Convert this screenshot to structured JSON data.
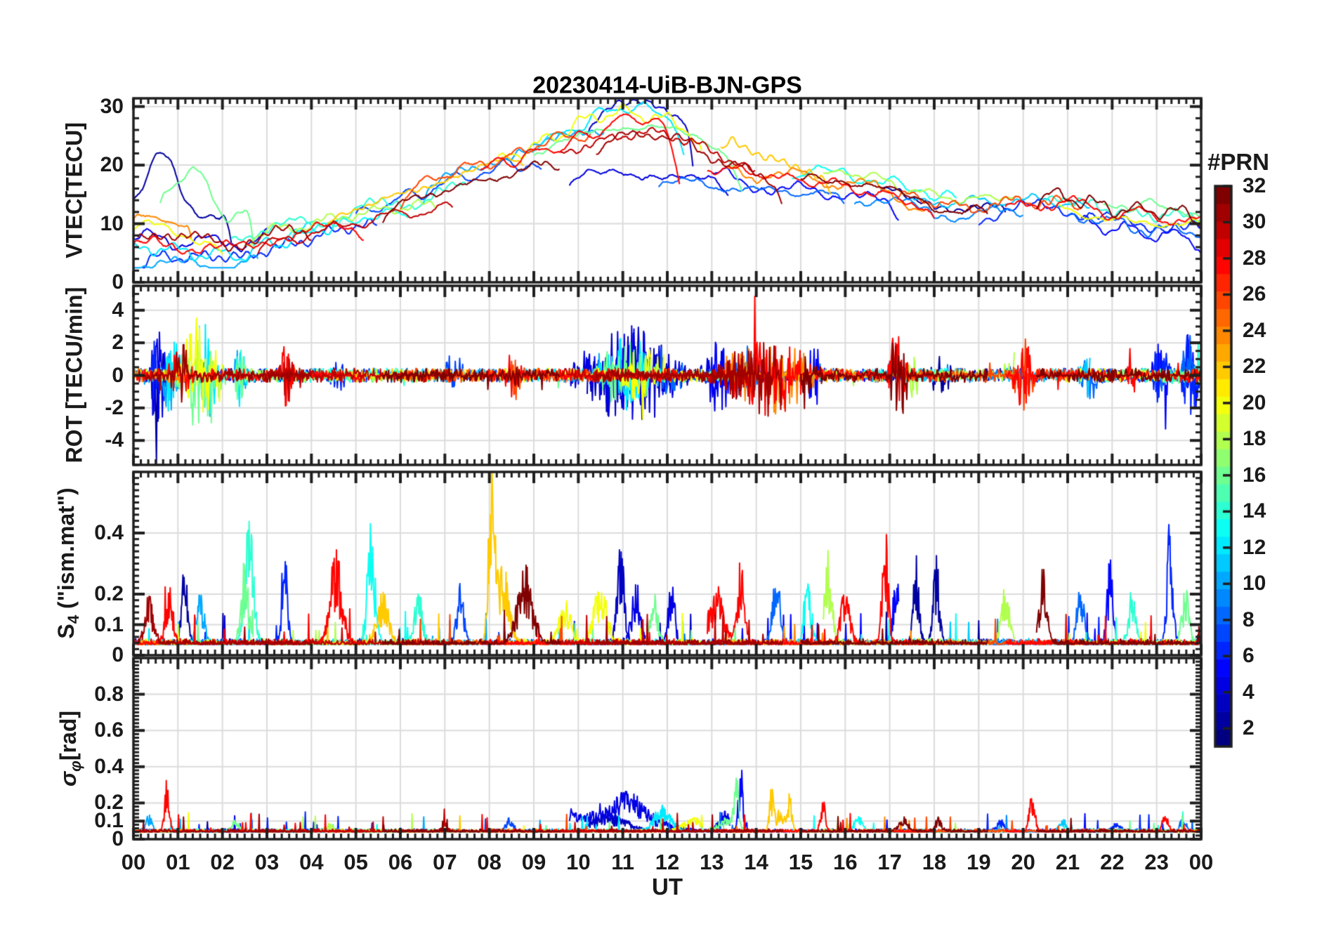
{
  "title": "20230414-UiB-BJN-GPS",
  "x_axis": {
    "label": "UT",
    "tick_labels": [
      "00",
      "01",
      "02",
      "03",
      "04",
      "05",
      "06",
      "07",
      "08",
      "09",
      "10",
      "11",
      "12",
      "13",
      "14",
      "15",
      "16",
      "17",
      "18",
      "19",
      "20",
      "21",
      "22",
      "23",
      "00"
    ],
    "hours_span": 24,
    "minor_tick_minutes": 10
  },
  "colorbar": {
    "label": "#PRN",
    "min": 1,
    "max": 32,
    "levels": 32,
    "tick_values": [
      32,
      30,
      28,
      26,
      24,
      22,
      20,
      18,
      16,
      14,
      12,
      10,
      8,
      6,
      4,
      2
    ],
    "colormap": "jet"
  },
  "figure": {
    "bg": "#ffffff",
    "axis_color": "#1f1f1f",
    "grid_color": "#dcdcdc",
    "text_color": "#1a1a1a"
  },
  "panels": [
    {
      "id": "vtec",
      "ylabel": {
        "pre": "VTEC[TECU]",
        "sub": "",
        "post": ""
      },
      "ylim": [
        0,
        31.4
      ],
      "yticks": [
        30,
        20,
        10,
        0
      ],
      "ytick_labels": [
        "30",
        "20",
        "10",
        "0"
      ],
      "minor_step": 2,
      "grid": true
    },
    {
      "id": "rot",
      "ylabel": {
        "pre": "ROT [TECU/min]",
        "sub": "",
        "post": ""
      },
      "ylim": [
        -5.5,
        5.5
      ],
      "yticks": [
        4,
        2,
        0,
        -2,
        -4
      ],
      "ytick_labels": [
        "4",
        "2",
        "0",
        "-2",
        "-4"
      ],
      "minor_step": 0.5,
      "grid": true
    },
    {
      "id": "s4",
      "ylabel": {
        "pre": "S",
        "sub": "4",
        "post": " (\"ism.mat\")"
      },
      "ylim": [
        0,
        0.6
      ],
      "yticks": [
        0.4,
        0.2,
        0.1,
        0
      ],
      "ytick_labels": [
        "0.4",
        "0.2",
        "0.1",
        "0"
      ],
      "minor_step": 0.02,
      "grid": true
    },
    {
      "id": "sigma_phi",
      "ylabel": {
        "pre": "σ",
        "sub": "φ",
        "post": "[rad]"
      },
      "ylim": [
        0,
        1.0
      ],
      "yticks": [
        0.8,
        0.6,
        0.4,
        0.2,
        0.1,
        0
      ],
      "ytick_labels": [
        "0.8",
        "0.6",
        "0.4",
        "0.2",
        "0.1",
        "0"
      ],
      "minor_step": 0.02,
      "grid": true
    }
  ],
  "chart_data": {
    "type": "line",
    "title": "20230414-UiB-BJN-GPS",
    "x_unit": "UT hours",
    "x_range": [
      0,
      24
    ],
    "color_coding": "line color = GPS PRN number 1-32 mapped through jet colormap",
    "panel_summaries": [
      {
        "panel": "VTEC[TECU]",
        "ylim": [
          0,
          31.4
        ],
        "behavior": "per-satellite arcs; band 5-15 TECU at 00-03 UT, minimum ~6 near 02 UT, rising to peak 23-30 TECU at 10-12.5 UT, decaying to 10-15 TECU after 17 UT"
      },
      {
        "panel": "ROT [TECU/min]",
        "ylim": [
          -5.5,
          5.5
        ],
        "behavior": "noise around 0 with bursts to ±4.5 near 00.5-02, 09.5-12.5, 13-15.5, 17.3, 19.5-20.3, 23.5-24 UT"
      },
      {
        "panel": "S4 (ism.mat)",
        "ylim": [
          0,
          0.6
        ],
        "behavior": "baseline 0.03-0.08 with scintillation spikes 0.2-0.62 throughout the day"
      },
      {
        "panel": "sigma_phi [rad]",
        "ylim": [
          0,
          1.0
        ],
        "behavior": "baseline ~0.05 rad, red spike 0.4 at 00.8 UT, elevated blue activity 0.1-0.22 at 10-12.5 UT, spikes 0.3-0.4 near 13.6 UT, orange spikes ~0.28 near 14.3-14.8 UT"
      }
    ],
    "vtec_center": [
      [
        0,
        10
      ],
      [
        0.5,
        10
      ],
      [
        1,
        9.5
      ],
      [
        1.5,
        9
      ],
      [
        2,
        8
      ],
      [
        2.5,
        8
      ],
      [
        3,
        9
      ],
      [
        3.5,
        9.8
      ],
      [
        4,
        10.5
      ],
      [
        5,
        12
      ],
      [
        6,
        13.5
      ],
      [
        7,
        15.5
      ],
      [
        8,
        17.5
      ],
      [
        9,
        19.5
      ],
      [
        10,
        21.5
      ],
      [
        10.8,
        23
      ],
      [
        11.5,
        23.5
      ],
      [
        12,
        23
      ],
      [
        12.5,
        22
      ],
      [
        13,
        20.5
      ],
      [
        13.5,
        19.5
      ],
      [
        14,
        18.5
      ],
      [
        14.5,
        18
      ],
      [
        15,
        17.8
      ],
      [
        15.5,
        17.5
      ],
      [
        16,
        17.3
      ],
      [
        16.5,
        16.5
      ],
      [
        17,
        15.8
      ],
      [
        17.5,
        14.5
      ],
      [
        18,
        13.2
      ],
      [
        18.5,
        12.8
      ],
      [
        19,
        13
      ],
      [
        19.5,
        13.5
      ],
      [
        20,
        14
      ],
      [
        20.5,
        14
      ],
      [
        21,
        13.5
      ],
      [
        21.5,
        12.8
      ],
      [
        22,
        12
      ],
      [
        22.5,
        11.5
      ],
      [
        23,
        11.2
      ],
      [
        23.5,
        11
      ],
      [
        24,
        10.8
      ]
    ],
    "vtec_spread": [
      [
        0,
        4
      ],
      [
        1,
        4.5
      ],
      [
        2,
        3.5
      ],
      [
        3,
        2.5
      ],
      [
        4,
        2
      ],
      [
        5,
        2
      ],
      [
        6,
        2.5
      ],
      [
        7,
        3
      ],
      [
        8,
        3.5
      ],
      [
        9,
        4
      ],
      [
        10,
        4.5
      ],
      [
        11,
        5
      ],
      [
        12,
        5
      ],
      [
        13,
        4
      ],
      [
        14,
        3
      ],
      [
        15,
        2.5
      ],
      [
        16,
        2.5
      ],
      [
        17,
        2.5
      ],
      [
        18,
        2.2
      ],
      [
        19,
        2.2
      ],
      [
        20,
        2.2
      ],
      [
        21,
        2
      ],
      [
        22,
        2
      ],
      [
        23,
        2
      ],
      [
        24,
        2
      ]
    ],
    "passes": [
      {
        "p": 2,
        "s": 0,
        "e": 2.2,
        "o": 0.9,
        "b": [
          0.62,
          8.5,
          0.28
        ],
        "ed": 5,
        "sd": 0
      },
      {
        "p": 3,
        "s": 10.2,
        "e": 12.6,
        "o": 1.1,
        "b": [
          11.5,
          2.5,
          0.55
        ],
        "ed": 9
      },
      {
        "p": 2,
        "s": 16.8,
        "e": 19.6,
        "o": -0.2
      },
      {
        "p": 4,
        "s": 0,
        "e": 3.0,
        "o": -0.5,
        "ed": 0
      },
      {
        "p": 4,
        "s": 9.8,
        "e": 13.4,
        "o": -0.9,
        "ed": 2
      },
      {
        "p": 5,
        "s": 13.0,
        "e": 17.2,
        "o": -0.5
      },
      {
        "p": 6,
        "s": 0.2,
        "e": 5.5,
        "o": -1.3,
        "sd": 2
      },
      {
        "p": 6,
        "s": 19.0,
        "e": 24,
        "o": -0.6
      },
      {
        "p": 7,
        "s": 5.0,
        "e": 9.2,
        "o": 0.3,
        "sd": 2
      },
      {
        "p": 8,
        "s": 11.8,
        "e": 16.0,
        "o": -1.1
      },
      {
        "p": 8,
        "s": 21.0,
        "e": 24,
        "o": -0.9
      },
      {
        "p": 10,
        "s": 0,
        "e": 2.8,
        "o": -1.5
      },
      {
        "p": 10,
        "s": 6.5,
        "e": 10.6,
        "o": 0.8,
        "sd": 3
      },
      {
        "p": 11,
        "s": 17.5,
        "e": 21.5,
        "o": 0.2
      },
      {
        "p": 12,
        "s": 0,
        "e": 4.6,
        "o": -1.0
      },
      {
        "p": 12,
        "s": 8.8,
        "e": 12.4,
        "o": 1.0,
        "b": [
          11.0,
          1.5,
          0.6
        ],
        "ed": 7
      },
      {
        "p": 13,
        "s": 14.8,
        "e": 18.5,
        "o": 0.5
      },
      {
        "p": 13,
        "s": 3.4,
        "e": 6.2,
        "o": -0.6
      },
      {
        "p": 14,
        "s": 2.2,
        "e": 7.5,
        "o": 0.1,
        "sd": 1.5
      },
      {
        "p": 14,
        "s": 20.5,
        "e": 24,
        "o": 0.4
      },
      {
        "p": 16,
        "s": 9.0,
        "e": 13.7,
        "o": 0.7,
        "ed": 6
      },
      {
        "p": 16,
        "s": 0.6,
        "e": 2.7,
        "o": 1.2,
        "b": [
          1.32,
          5,
          0.3
        ],
        "ed": 7,
        "sd": 3
      },
      {
        "p": 16,
        "s": 21.8,
        "e": 24,
        "o": 0.7
      },
      {
        "p": 18,
        "s": 2.5,
        "e": 6.8,
        "o": -0.3
      },
      {
        "p": 18,
        "s": 15.5,
        "e": 19.8,
        "o": 0.5
      },
      {
        "p": 20,
        "s": 0,
        "e": 2.0,
        "o": -0.2,
        "ed": 2
      },
      {
        "p": 20,
        "s": 8.2,
        "e": 12.8,
        "o": 0.9,
        "b": [
          10.8,
          1.2,
          0.7
        ],
        "ed": 4
      },
      {
        "p": 20,
        "s": 20.8,
        "e": 24,
        "o": -0.3
      },
      {
        "p": 22,
        "s": 4.3,
        "e": 8.8,
        "o": 0.5,
        "sd": 3
      },
      {
        "p": 22,
        "s": 13.2,
        "e": 15.7,
        "o": 0.8,
        "b": [
          13.35,
          2.5,
          0.4
        ],
        "ed": 3
      },
      {
        "p": 24,
        "s": 13.3,
        "e": 17.8,
        "o": -0.1
      },
      {
        "p": 24,
        "s": 0,
        "e": 1.3,
        "o": 0.2,
        "ed": 3
      },
      {
        "p": 26,
        "s": 6.0,
        "e": 10.3,
        "o": 0.7,
        "sd": 2
      },
      {
        "p": 26,
        "s": 17.2,
        "e": 21.3,
        "o": 0
      },
      {
        "p": 28,
        "s": 0,
        "e": 5.2,
        "o": -0.7
      },
      {
        "p": 28,
        "s": 7.8,
        "e": 12.3,
        "o": 0.7,
        "b": [
          11.2,
          2,
          0.5
        ],
        "ed": 9
      },
      {
        "p": 28,
        "s": 12.9,
        "e": 18.0,
        "o": -0.2
      },
      {
        "p": 28,
        "s": 19.6,
        "e": 24,
        "o": -0.1
      },
      {
        "p": 30,
        "s": 9.6,
        "e": 14.0,
        "o": 0.4
      },
      {
        "p": 30,
        "s": 2.8,
        "e": 7.2,
        "o": -0.8,
        "sd": 1
      },
      {
        "p": 31,
        "s": 0.1,
        "e": 4.0,
        "o": -0.4
      },
      {
        "p": 31,
        "s": 10.4,
        "e": 14.6,
        "o": 0.2,
        "ed": 4
      },
      {
        "p": 32,
        "s": 5.6,
        "e": 9.6,
        "o": -0.1,
        "sd": 2
      },
      {
        "p": 32,
        "s": 15.0,
        "e": 19.2,
        "o": 0
      },
      {
        "p": 32,
        "s": 20.3,
        "e": 24,
        "o": 0.4
      },
      {
        "p": 5,
        "s": 21.3,
        "e": 24,
        "o": -1.2,
        "ed": 2
      },
      {
        "p": 9,
        "s": 16.2,
        "e": 20.0,
        "o": -0.8
      }
    ],
    "rot_bursts": [
      [
        0.35,
        0.75,
        2.3,
        1,
        6
      ],
      [
        0.55,
        1.15,
        1.1,
        8,
        12
      ],
      [
        0.75,
        1.35,
        1.0,
        26,
        32
      ],
      [
        0.85,
        2.15,
        1.9,
        14,
        20
      ],
      [
        1.35,
        1.95,
        1.7,
        8,
        14
      ],
      [
        2.2,
        2.6,
        0.8,
        10,
        16
      ],
      [
        3.25,
        3.65,
        1.0,
        26,
        30
      ],
      [
        4.4,
        4.8,
        0.6,
        4,
        8
      ],
      [
        6.9,
        7.5,
        0.7,
        2,
        8
      ],
      [
        7.9,
        8.5,
        0.9,
        2,
        6
      ],
      [
        8.3,
        8.8,
        0.8,
        26,
        32
      ],
      [
        9.6,
        12.6,
        1.5,
        1,
        8
      ],
      [
        10.3,
        11.9,
        1.1,
        9,
        16
      ],
      [
        10.8,
        12.2,
        0.9,
        17,
        24
      ],
      [
        12.7,
        13.6,
        1.1,
        1,
        6
      ],
      [
        12.9,
        15.6,
        1.2,
        24,
        32
      ],
      [
        13.4,
        14.2,
        1.0,
        8,
        14
      ],
      [
        14.6,
        15.3,
        1.2,
        14,
        20
      ],
      [
        15.1,
        15.5,
        1.3,
        1,
        6
      ],
      [
        16.9,
        17.5,
        1.6,
        28,
        32
      ],
      [
        17.3,
        17.7,
        1.0,
        14,
        18
      ],
      [
        17.9,
        18.4,
        1.1,
        2,
        8
      ],
      [
        19.5,
        20.4,
        1.4,
        16,
        20
      ],
      [
        19.7,
        20.3,
        1.2,
        26,
        30
      ],
      [
        21.2,
        21.8,
        0.7,
        8,
        12
      ],
      [
        22.2,
        22.6,
        0.8,
        24,
        28
      ],
      [
        22.8,
        23.4,
        0.9,
        2,
        6
      ],
      [
        23.5,
        24,
        1.5,
        4,
        8
      ],
      [
        23.8,
        24,
        1.3,
        10,
        14
      ]
    ],
    "s4_events": [
      [
        0.35,
        31,
        0.16,
        6
      ],
      [
        0.8,
        28,
        0.2,
        5
      ],
      [
        1.15,
        2,
        0.28,
        4
      ],
      [
        1.5,
        10,
        0.2,
        5
      ],
      [
        2.6,
        14,
        0.42,
        6
      ],
      [
        2.5,
        16,
        0.28,
        5
      ],
      [
        3.4,
        6,
        0.3,
        4
      ],
      [
        4.55,
        28,
        0.33,
        8
      ],
      [
        5.35,
        13,
        0.45,
        5
      ],
      [
        5.6,
        22,
        0.18,
        8
      ],
      [
        6.4,
        14,
        0.17,
        6
      ],
      [
        7.35,
        7,
        0.2,
        5
      ],
      [
        8.05,
        22,
        0.62,
        4
      ],
      [
        8.3,
        22,
        0.26,
        9
      ],
      [
        8.8,
        32,
        0.27,
        10
      ],
      [
        9.7,
        20,
        0.15,
        8
      ],
      [
        10.5,
        20,
        0.2,
        9
      ],
      [
        10.95,
        3,
        0.35,
        5
      ],
      [
        11.3,
        4,
        0.22,
        6
      ],
      [
        11.7,
        16,
        0.19,
        5
      ],
      [
        12.1,
        4,
        0.26,
        4
      ],
      [
        13.1,
        28,
        0.19,
        10
      ],
      [
        13.65,
        28,
        0.28,
        5
      ],
      [
        14.45,
        8,
        0.3,
        5
      ],
      [
        15.6,
        18,
        0.27,
        6
      ],
      [
        15.15,
        13,
        0.22,
        5
      ],
      [
        16.0,
        28,
        0.19,
        6
      ],
      [
        16.9,
        28,
        0.42,
        4
      ],
      [
        17.15,
        5,
        0.22,
        5
      ],
      [
        17.6,
        2,
        0.29,
        4
      ],
      [
        18.05,
        2,
        0.31,
        4
      ],
      [
        19.4,
        28,
        0.26,
        5
      ],
      [
        19.6,
        18,
        0.19,
        6
      ],
      [
        20.45,
        32,
        0.26,
        5
      ],
      [
        21.3,
        8,
        0.2,
        5
      ],
      [
        21.95,
        5,
        0.28,
        4
      ],
      [
        22.45,
        14,
        0.19,
        5
      ],
      [
        23.3,
        6,
        0.45,
        4
      ],
      [
        23.65,
        16,
        0.19,
        5
      ]
    ],
    "sigma_events": [
      [
        0.75,
        28,
        0.38,
        3
      ],
      [
        0.35,
        10,
        0.1,
        4
      ],
      [
        2.3,
        16,
        0.06,
        6
      ],
      [
        4.4,
        18,
        0.05,
        5
      ],
      [
        7.0,
        30,
        0.06,
        4
      ],
      [
        8.45,
        7,
        0.08,
        5
      ],
      [
        9.9,
        4,
        0.1,
        6
      ],
      [
        10.9,
        4,
        0.15,
        45
      ],
      [
        11.15,
        4,
        0.1,
        15
      ],
      [
        10.7,
        3,
        0.1,
        25
      ],
      [
        11.9,
        12,
        0.14,
        12
      ],
      [
        12.6,
        20,
        0.08,
        15
      ],
      [
        13.3,
        16,
        0.07,
        12
      ],
      [
        13.55,
        16,
        0.31,
        3
      ],
      [
        13.65,
        5,
        0.38,
        3
      ],
      [
        13.3,
        4,
        0.12,
        8
      ],
      [
        14.35,
        22,
        0.26,
        3
      ],
      [
        14.55,
        22,
        0.16,
        4
      ],
      [
        14.75,
        22,
        0.22,
        3
      ],
      [
        15.5,
        28,
        0.21,
        3
      ],
      [
        16.3,
        13,
        0.08,
        6
      ],
      [
        17.3,
        32,
        0.08,
        6
      ],
      [
        18.1,
        32,
        0.08,
        4
      ],
      [
        19.5,
        6,
        0.07,
        5
      ],
      [
        20.2,
        28,
        0.21,
        4
      ],
      [
        20.9,
        11,
        0.08,
        5
      ],
      [
        22.1,
        6,
        0.06,
        5
      ],
      [
        23.2,
        28,
        0.1,
        4
      ],
      [
        23.6,
        8,
        0.08,
        4
      ]
    ]
  }
}
